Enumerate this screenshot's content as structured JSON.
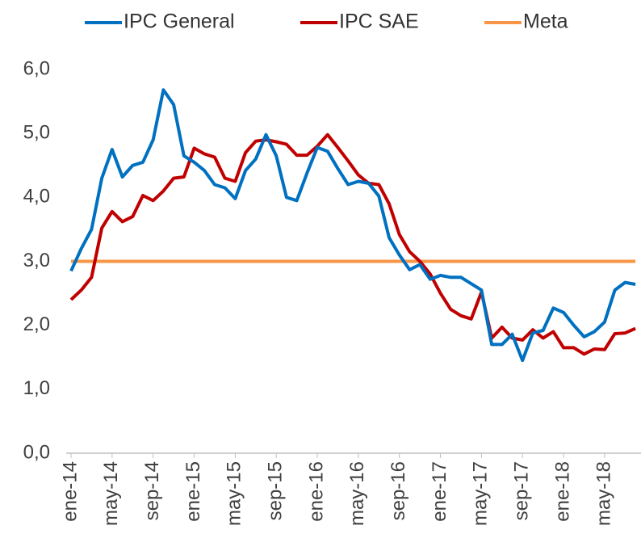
{
  "chart_data": {
    "type": "line",
    "categories": [
      "ene-14",
      null,
      null,
      null,
      "may-14",
      null,
      null,
      null,
      "sep-14",
      null,
      null,
      null,
      "ene-15",
      null,
      null,
      null,
      "may-15",
      null,
      null,
      null,
      "sep-15",
      null,
      null,
      null,
      "ene-16",
      null,
      null,
      null,
      "may-16",
      null,
      null,
      null,
      "sep-16",
      null,
      null,
      null,
      "ene-17",
      null,
      null,
      null,
      "may-17",
      null,
      null,
      null,
      "sep-17",
      null,
      null,
      null,
      "ene-18",
      null,
      null,
      null,
      "may-18",
      null,
      null,
      null
    ],
    "series": [
      {
        "name": "IPC General",
        "color": "#0070c0",
        "values": [
          2.85,
          3.2,
          3.5,
          4.3,
          4.75,
          4.32,
          4.5,
          4.55,
          4.9,
          5.68,
          5.45,
          4.65,
          4.55,
          4.42,
          4.2,
          4.15,
          3.98,
          4.42,
          4.6,
          4.98,
          4.65,
          4.0,
          3.95,
          4.38,
          4.78,
          4.72,
          4.45,
          4.2,
          4.25,
          4.22,
          4.02,
          3.37,
          3.1,
          2.87,
          2.95,
          2.72,
          2.78,
          2.75,
          2.75,
          2.65,
          2.55,
          1.7,
          1.7,
          1.86,
          1.45,
          1.88,
          1.92,
          2.27,
          2.2,
          2.0,
          1.82,
          1.9,
          2.05,
          2.55,
          2.67,
          2.64
        ]
      },
      {
        "name": "IPC SAE",
        "color": "#c00000",
        "values": [
          2.4,
          2.55,
          2.75,
          3.52,
          3.78,
          3.62,
          3.7,
          4.03,
          3.95,
          4.1,
          4.3,
          4.32,
          4.77,
          4.68,
          4.63,
          4.3,
          4.25,
          4.7,
          4.88,
          4.9,
          4.87,
          4.83,
          4.66,
          4.66,
          4.8,
          4.98,
          4.78,
          4.57,
          4.35,
          4.22,
          4.2,
          3.9,
          3.42,
          3.15,
          3.0,
          2.8,
          2.5,
          2.25,
          2.15,
          2.1,
          2.52,
          1.8,
          1.97,
          1.8,
          1.77,
          1.93,
          1.8,
          1.9,
          1.65,
          1.65,
          1.55,
          1.63,
          1.62,
          1.87,
          1.88,
          1.95
        ]
      },
      {
        "name": "Meta",
        "color": "#f79646",
        "values": [
          3,
          3,
          3,
          3,
          3,
          3,
          3,
          3,
          3,
          3,
          3,
          3,
          3,
          3,
          3,
          3,
          3,
          3,
          3,
          3,
          3,
          3,
          3,
          3,
          3,
          3,
          3,
          3,
          3,
          3,
          3,
          3,
          3,
          3,
          3,
          3,
          3,
          3,
          3,
          3,
          3,
          3,
          3,
          3,
          3,
          3,
          3,
          3,
          3,
          3,
          3,
          3,
          3,
          3,
          3,
          3
        ]
      }
    ],
    "ylim": [
      0,
      6
    ],
    "yticks": [
      {
        "value": 0,
        "label": "0,0"
      },
      {
        "value": 1,
        "label": "1,0"
      },
      {
        "value": 2,
        "label": "2,0"
      },
      {
        "value": 3,
        "label": "3,0"
      },
      {
        "value": 4,
        "label": "4,0"
      },
      {
        "value": 5,
        "label": "5,0"
      },
      {
        "value": 6,
        "label": "6,0"
      }
    ],
    "grid": false,
    "legend": "top"
  }
}
